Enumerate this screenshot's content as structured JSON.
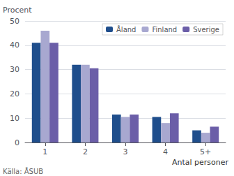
{
  "chart_data": {
    "type": "bar",
    "categories": [
      "1",
      "2",
      "3",
      "4",
      "5+"
    ],
    "series": [
      {
        "name": "Åland",
        "color": "#1f4e8c",
        "values": [
          41.0,
          32.0,
          11.5,
          10.5,
          5.0
        ]
      },
      {
        "name": "Finland",
        "color": "#a8a8d0",
        "values": [
          46.0,
          32.0,
          10.5,
          8.0,
          4.0
        ]
      },
      {
        "name": "Sverige",
        "color": "#6b5ea8",
        "values": [
          41.0,
          30.5,
          11.5,
          12.0,
          6.5
        ]
      }
    ],
    "ylabel": "Procent",
    "xlabel": "Antal personer",
    "annotations": [
      "Källa: ÅSUB"
    ],
    "ylim": [
      0,
      50
    ],
    "yticks": [
      0,
      10,
      20,
      30,
      40,
      50
    ],
    "grid": true,
    "legend": "upper right"
  }
}
